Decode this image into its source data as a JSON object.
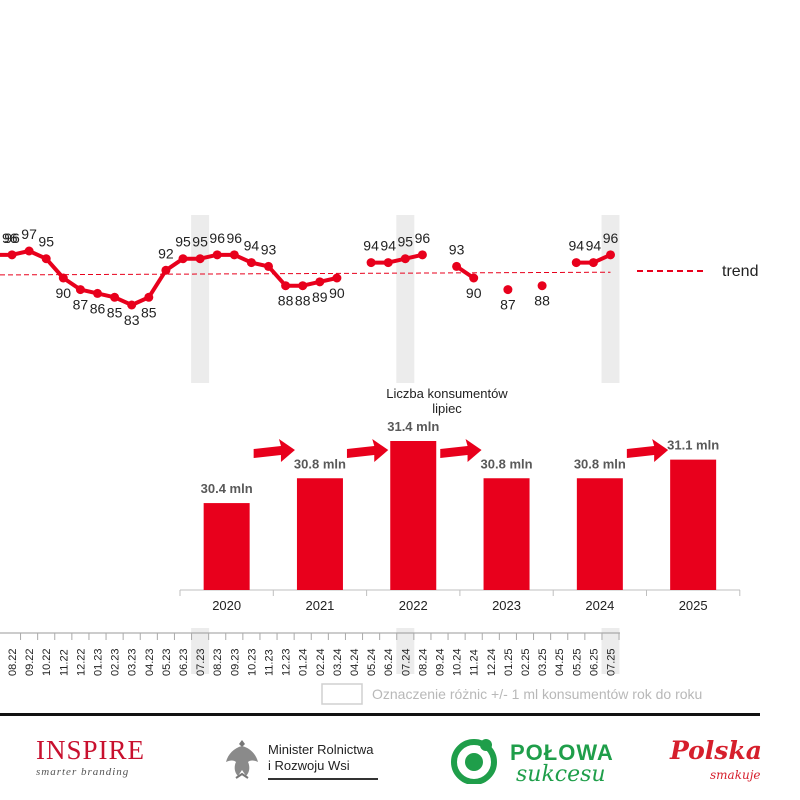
{
  "chart_data": [
    {
      "type": "line",
      "x": [
        "08.22",
        "09.22",
        "10.22",
        "11.22",
        "12.22",
        "01.23",
        "02.23",
        "03.23",
        "04.23",
        "05.23",
        "06.23",
        "07.23",
        "08.23",
        "09.23",
        "10.23",
        "11.23",
        "12.23",
        "01.24",
        "02.24",
        "03.24",
        "04.24",
        "05.24",
        "06.24",
        "07.24",
        "08.24",
        "09.24",
        "10.24",
        "11.24",
        "12.24",
        "01.25",
        "02.25",
        "03.25",
        "04.25",
        "05.25",
        "06.25",
        "07.25"
      ],
      "series": [
        {
          "values": [
            96,
            97,
            95,
            90,
            87,
            86,
            85,
            83,
            85,
            92,
            95,
            95,
            96,
            96,
            94,
            93,
            88,
            88,
            89,
            90,
            null,
            94,
            94,
            95,
            96,
            null,
            93,
            90,
            null,
            87,
            null,
            88,
            null,
            94,
            94,
            96
          ],
          "color": "#e8001c"
        }
      ],
      "leading_values": [
        96
      ],
      "trend": {
        "label": "trend",
        "from": 90.8,
        "to": 91.5,
        "color": "#e8001c"
      },
      "highlight_months": [
        "07.23",
        "07.24",
        "07.25"
      ],
      "highlight_note": "Oznaczenie różnic +/- 1 ml konsumentów rok do roku",
      "ylim": [
        78,
        102
      ]
    },
    {
      "type": "bar",
      "title": "Liczba konsumentów\nlipiec",
      "categories": [
        "2020",
        "2021",
        "2022",
        "2023",
        "2024",
        "2025"
      ],
      "values": [
        30.4,
        30.8,
        31.4,
        30.8,
        30.8,
        31.1
      ],
      "labels": [
        "30.4 mln",
        "30.8 mln",
        "31.4 mln",
        "30.8 mln",
        "30.8 mln",
        "31.1 mln"
      ],
      "arrows_after": [
        "2020",
        "2021",
        "2022",
        "2024"
      ],
      "color": "#e8001c"
    }
  ],
  "logos": {
    "inspire_title": "INSPIRE",
    "inspire_tagline": "smarter branding",
    "minister_line1": "Minister Rolnictwa",
    "minister_line2": "i Rozwoju Wsi",
    "polowa_line1": "POŁOWA",
    "polowa_line2": "sukcesu",
    "polska_line1": "Polska",
    "polska_line2": "smakuje"
  },
  "colors": {
    "red": "#e8001c",
    "green": "#1f9e4a",
    "band": "#ececec"
  }
}
